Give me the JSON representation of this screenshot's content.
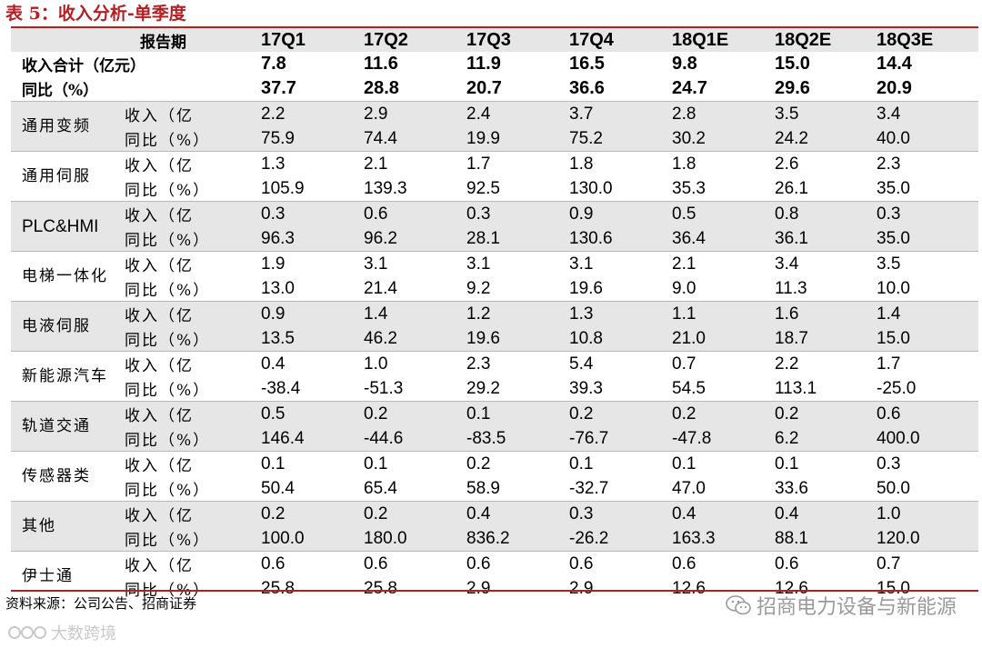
{
  "title": "表 5：收入分析-单季度",
  "header": {
    "label": "报告期",
    "periods": [
      "17Q1",
      "17Q2",
      "17Q3",
      "17Q4",
      "18Q1E",
      "18Q2E",
      "18Q3E"
    ]
  },
  "totals": [
    {
      "label": "收入合计（亿元）",
      "values": [
        "7.8",
        "11.6",
        "11.9",
        "16.5",
        "9.8",
        "15.0",
        "14.4"
      ]
    },
    {
      "label": "同比（%）",
      "values": [
        "37.7",
        "28.8",
        "20.7",
        "36.6",
        "24.7",
        "29.6",
        "20.9"
      ]
    }
  ],
  "segments": [
    {
      "name": "通用变频",
      "rev_label": "收入（亿",
      "yoy_label": "同比（%）",
      "revenue": [
        "2.2",
        "2.9",
        "2.4",
        "3.7",
        "2.8",
        "3.5",
        "3.4"
      ],
      "yoy": [
        "75.9",
        "74.4",
        "19.9",
        "75.2",
        "30.2",
        "24.2",
        "40.0"
      ]
    },
    {
      "name": "通用伺服",
      "rev_label": "收入（亿",
      "yoy_label": "同比（%）",
      "revenue": [
        "1.3",
        "2.1",
        "1.7",
        "1.8",
        "1.8",
        "2.6",
        "2.3"
      ],
      "yoy": [
        "105.9",
        "139.3",
        "92.5",
        "130.0",
        "35.3",
        "26.1",
        "35.0"
      ]
    },
    {
      "name": "PLC&HMI",
      "rev_label": "收入（亿",
      "yoy_label": "同比（%）",
      "revenue": [
        "0.3",
        "0.6",
        "0.3",
        "0.9",
        "0.5",
        "0.8",
        "0.3"
      ],
      "yoy": [
        "96.3",
        "96.2",
        "28.1",
        "130.6",
        "36.4",
        "36.1",
        "35.0"
      ]
    },
    {
      "name": "电梯一体化",
      "rev_label": "收入（亿",
      "yoy_label": "同比（%）",
      "revenue": [
        "1.9",
        "3.1",
        "3.1",
        "3.1",
        "2.1",
        "3.4",
        "3.5"
      ],
      "yoy": [
        "13.0",
        "21.4",
        "9.2",
        "19.6",
        "9.0",
        "11.3",
        "10.0"
      ]
    },
    {
      "name": "电液伺服",
      "rev_label": "收入（亿",
      "yoy_label": "同比（%）",
      "revenue": [
        "0.9",
        "1.4",
        "1.2",
        "1.3",
        "1.1",
        "1.6",
        "1.4"
      ],
      "yoy": [
        "13.5",
        "46.2",
        "19.6",
        "10.8",
        "21.0",
        "18.7",
        "15.0"
      ]
    },
    {
      "name": "新能源汽车",
      "rev_label": "收入（亿",
      "yoy_label": "同比（%）",
      "revenue": [
        "0.4",
        "1.0",
        "2.3",
        "5.4",
        "0.7",
        "2.2",
        "1.7"
      ],
      "yoy": [
        "-38.4",
        "-51.3",
        "29.2",
        "39.3",
        "54.5",
        "113.1",
        "-25.0"
      ]
    },
    {
      "name": "轨道交通",
      "rev_label": "收入（亿",
      "yoy_label": "同比（%）",
      "revenue": [
        "0.5",
        "0.2",
        "0.1",
        "0.2",
        "0.2",
        "0.2",
        "0.6"
      ],
      "yoy": [
        "146.4",
        "-44.6",
        "-83.5",
        "-76.7",
        "-47.8",
        "6.2",
        "400.0"
      ]
    },
    {
      "name": "传感器类",
      "rev_label": "收入（亿",
      "yoy_label": "同比（%）",
      "revenue": [
        "0.1",
        "0.1",
        "0.2",
        "0.1",
        "0.1",
        "0.1",
        "0.3"
      ],
      "yoy": [
        "50.4",
        "65.4",
        "58.9",
        "-32.7",
        "47.0",
        "33.6",
        "50.0"
      ]
    },
    {
      "name": "其他",
      "rev_label": "收入（亿",
      "yoy_label": "同比（%）",
      "revenue": [
        "0.2",
        "0.2",
        "0.4",
        "0.3",
        "0.4",
        "0.4",
        "1.0"
      ],
      "yoy": [
        "100.0",
        "180.0",
        "836.2",
        "-26.2",
        "163.3",
        "88.1",
        "120.0"
      ]
    },
    {
      "name": "伊士通",
      "rev_label": "收入（亿",
      "yoy_label": "同比（%）",
      "revenue": [
        "0.6",
        "0.6",
        "0.6",
        "0.6",
        "0.6",
        "0.6",
        "0.7"
      ],
      "yoy": [
        "25.8",
        "25.8",
        "2.9",
        "2.9",
        "12.6",
        "12.6",
        "15.0"
      ]
    }
  ],
  "source": "资料来源：公司公告、招商证券",
  "wechat_label": "招商电力设备与新能源",
  "watermark": "大数跨境",
  "colors": {
    "accent": "#b22025",
    "shade": "#e6e6e6"
  }
}
